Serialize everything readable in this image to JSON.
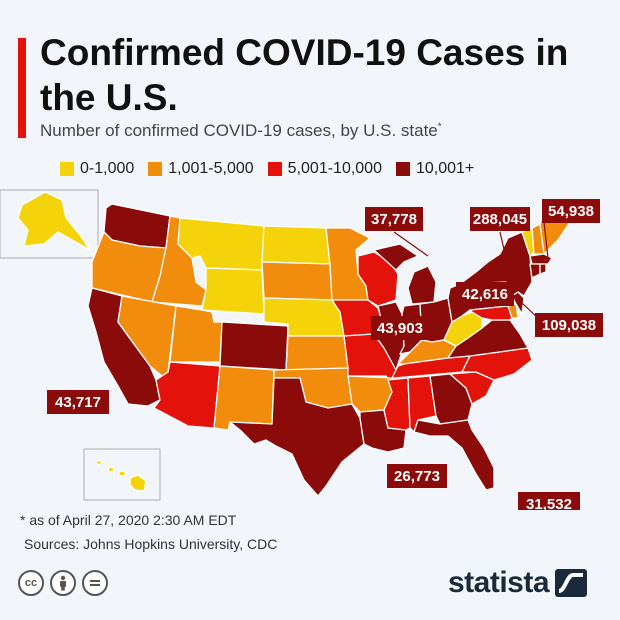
{
  "title": "Confirmed COVID-19 Cases in the U.S.",
  "subtitle": "Number of confirmed COVID-19 cases, by U.S. state",
  "subtitle_mark": "*",
  "legend": [
    {
      "label": "0-1,000",
      "color": "#f5d30a"
    },
    {
      "label": "1,001-5,000",
      "color": "#f28c0c"
    },
    {
      "label": "5,001-10,000",
      "color": "#e3120b"
    },
    {
      "label": "10,001+",
      "color": "#8b0a0a"
    }
  ],
  "callouts": [
    {
      "state": "Michigan",
      "value": "37,778"
    },
    {
      "state": "New York",
      "value": "288,045"
    },
    {
      "state": "Massachusetts",
      "value": "54,938"
    },
    {
      "state": "Pennsylvania",
      "value": "42,616"
    },
    {
      "state": "Illinois",
      "value": "43,903"
    },
    {
      "state": "New Jersey",
      "value": "109,038"
    },
    {
      "state": "California",
      "value": "43,717"
    },
    {
      "state": "Louisiana",
      "value": "26,773"
    },
    {
      "state": "Florida",
      "value": "31,532"
    }
  ],
  "footnote": "* as of April 27, 2020 2:30 AM EDT",
  "sources": "Sources: Johns Hopkins University, CDC",
  "license_icons": [
    "creative-commons-icon",
    "attribution-icon",
    "no-derivatives-icon"
  ],
  "brand": "statista",
  "colors": {
    "accent": "#e3120b",
    "border": "#ffffff",
    "callout_bg": "#8b0a0a"
  }
}
